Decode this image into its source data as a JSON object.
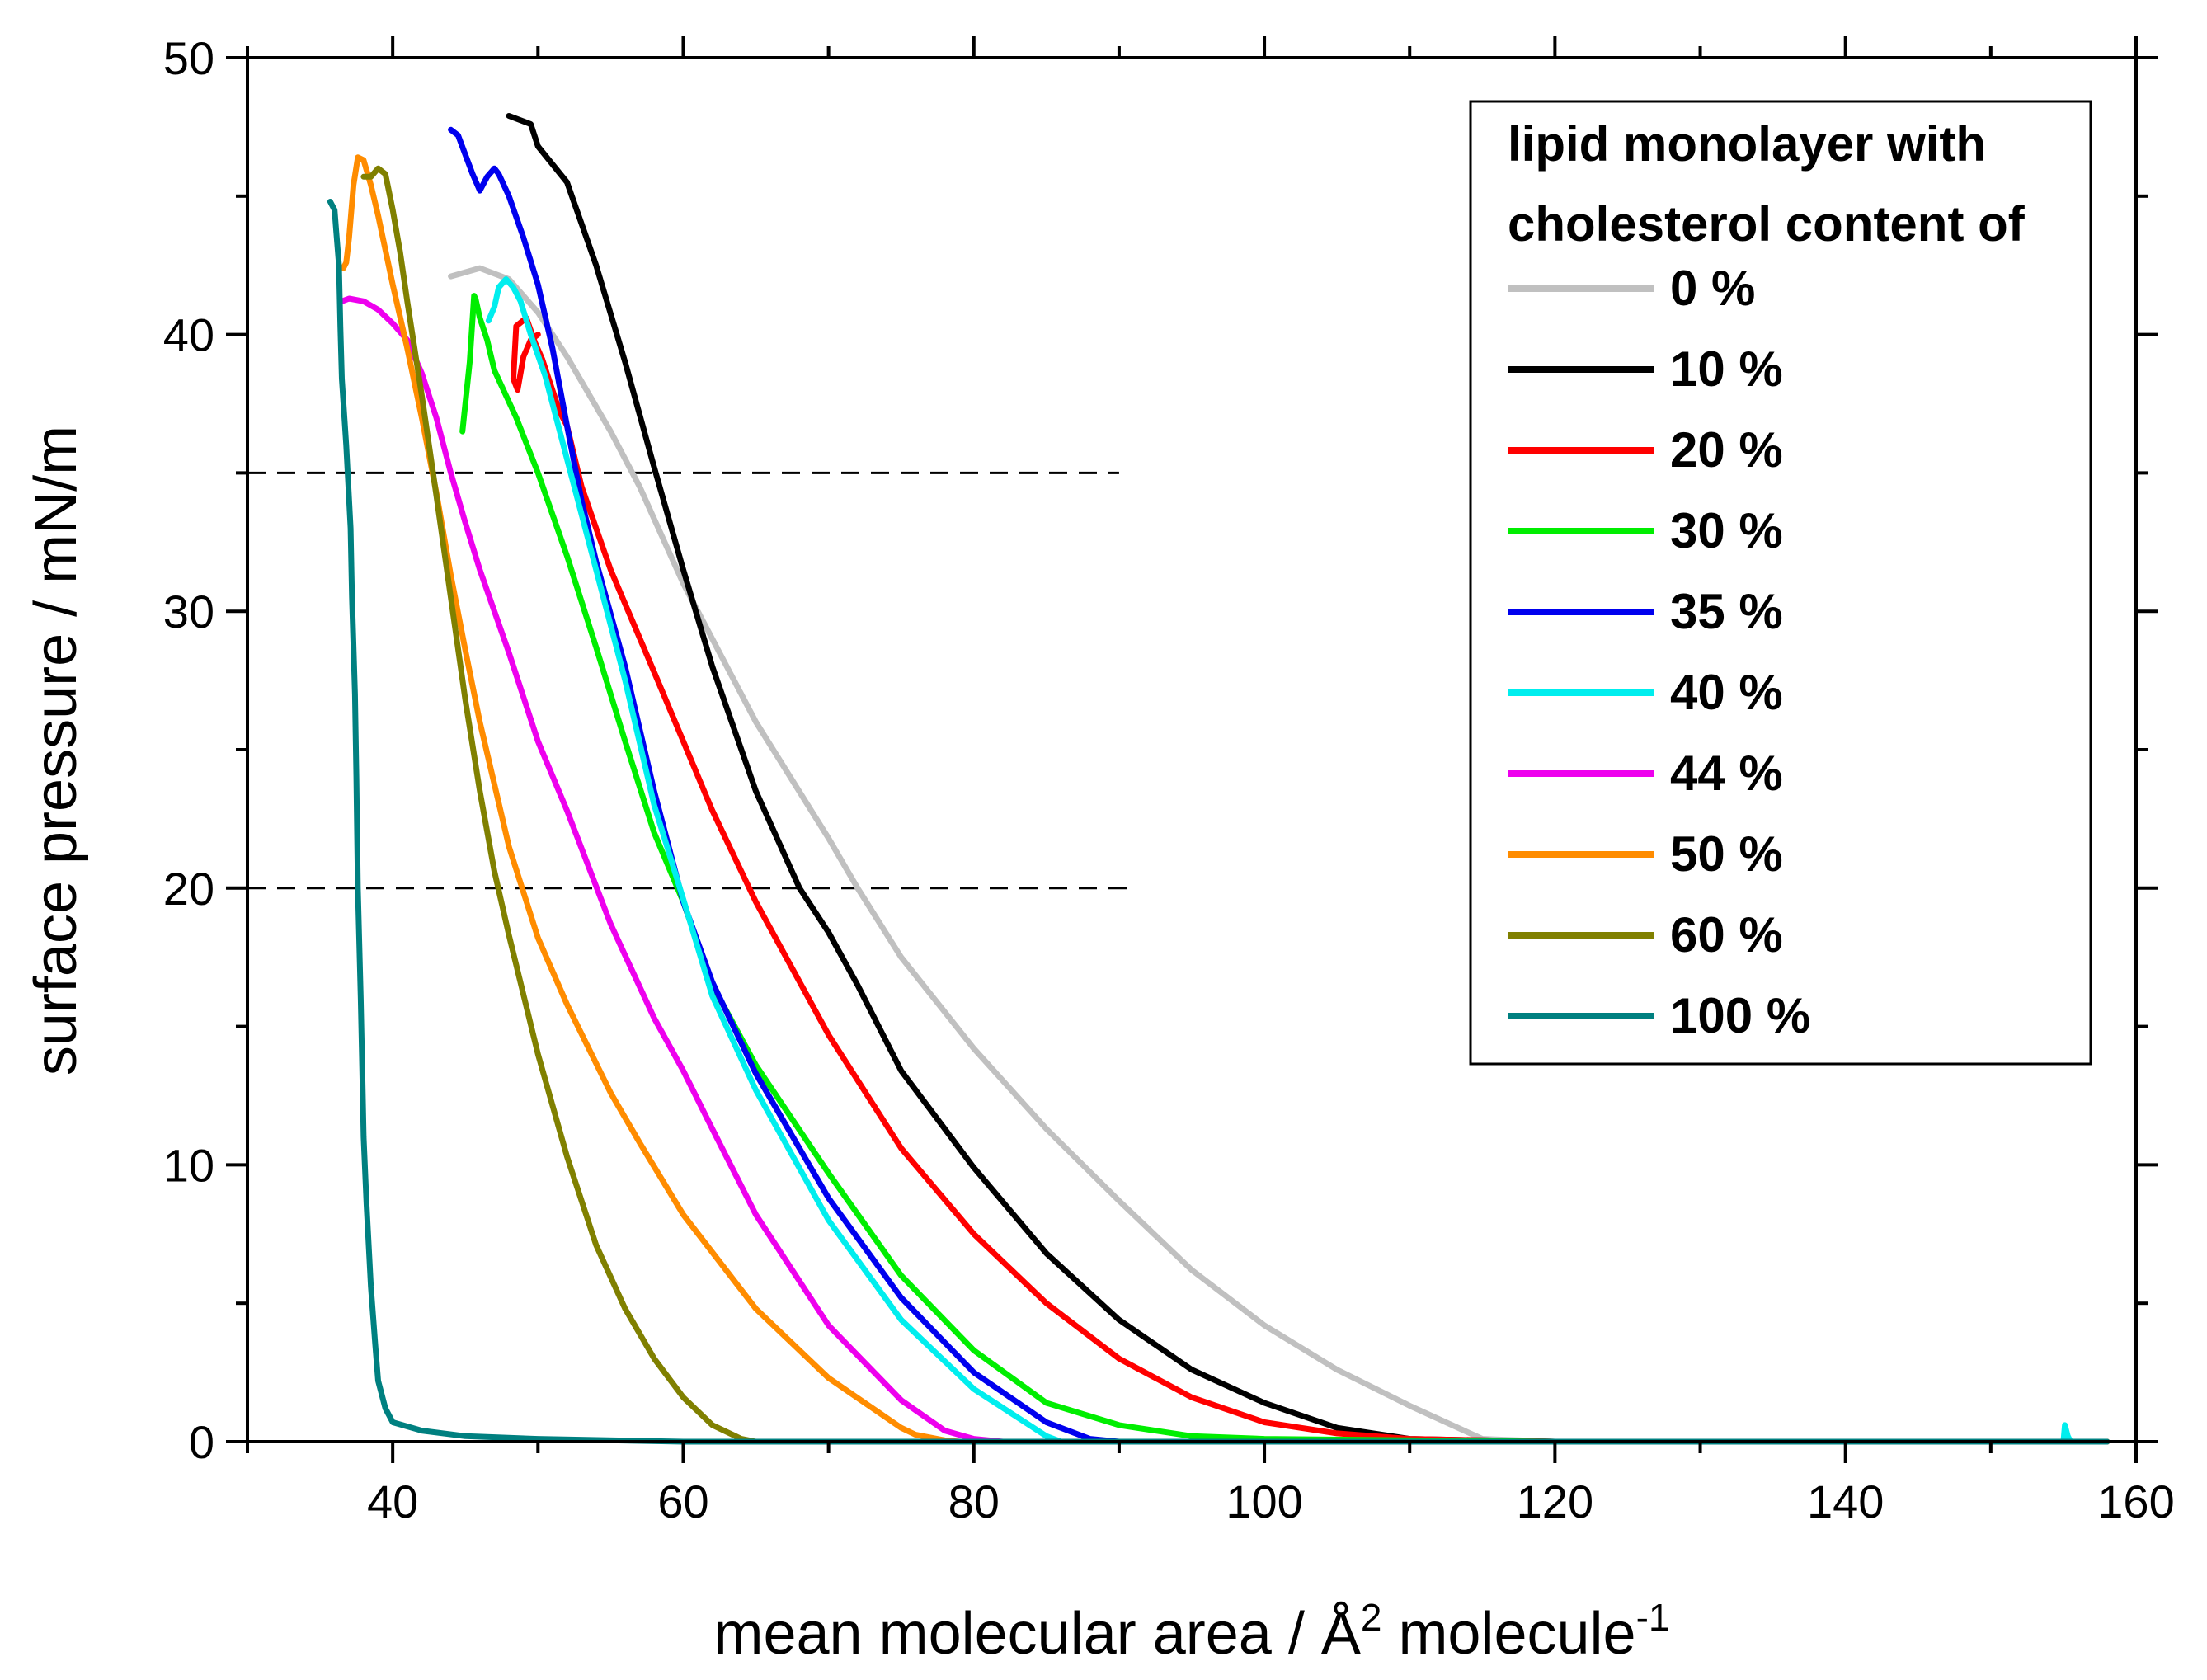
{
  "chart_data": {
    "type": "line",
    "title": "",
    "xlabel": "mean molecular area / Å",
    "xlabel_sup1": "2",
    "xlabel_mid": " molecule",
    "xlabel_sup2": "-1",
    "ylabel": "surface pressure / mN/m",
    "xlim": [
      30,
      160
    ],
    "ylim": [
      0,
      50
    ],
    "xticks": [
      40,
      60,
      80,
      100,
      120,
      140,
      160
    ],
    "yticks": [
      0,
      10,
      20,
      30,
      40,
      50
    ],
    "grid": false,
    "legend_position": "top-right",
    "legend_title_line1": "lipid monolayer with",
    "legend_title_line2": "cholesterol content of",
    "reference_lines": [
      {
        "y": 35,
        "x_range": [
          30,
          90
        ],
        "style": "dashed"
      },
      {
        "y": 20,
        "x_range": [
          30,
          91
        ],
        "style": "dashed"
      }
    ],
    "series": [
      {
        "name": "0 %",
        "color": "#c0c0c0",
        "x": [
          158,
          140,
          120,
          115,
          110,
          105,
          100,
          95,
          90,
          85,
          80,
          75,
          72,
          70,
          65,
          60,
          57,
          55,
          52,
          50,
          48,
          46,
          44
        ],
        "y": [
          0,
          0,
          0,
          0.1,
          1.3,
          2.6,
          4.2,
          6.2,
          8.7,
          11.3,
          14.2,
          17.5,
          20,
          21.8,
          26,
          31,
          34.5,
          36.5,
          39.2,
          40.8,
          42,
          42.4,
          42.1
        ]
      },
      {
        "name": "10 %",
        "color": "#000000",
        "x": [
          158,
          140,
          120,
          110,
          105,
          100,
          95,
          90,
          85,
          80,
          75,
          72,
          70,
          68,
          65,
          62,
          60,
          58,
          56,
          54,
          52,
          50,
          49.5,
          48
        ],
        "y": [
          0,
          0,
          0,
          0.1,
          0.5,
          1.4,
          2.6,
          4.4,
          6.8,
          9.9,
          13.4,
          16.5,
          18.4,
          20,
          23.5,
          28,
          31.5,
          35.2,
          39,
          42.5,
          45.5,
          46.8,
          47.6,
          47.9
        ]
      },
      {
        "name": "20 %",
        "color": "#ff0000",
        "x": [
          158,
          140,
          120,
          110,
          105,
          100,
          95,
          90,
          85,
          80,
          75,
          70,
          65,
          62,
          60,
          58,
          55,
          53,
          52,
          51.5,
          50.8,
          50.3,
          49.8,
          49.2,
          48.5,
          48.3,
          48.6,
          49,
          49.5,
          50
        ],
        "y": [
          0,
          0,
          0,
          0.1,
          0.3,
          0.7,
          1.6,
          3,
          5,
          7.5,
          10.6,
          14.7,
          19.5,
          22.8,
          25.3,
          27.8,
          31.5,
          34.5,
          36.7,
          37.2,
          38.3,
          39.1,
          39.7,
          40.6,
          40.3,
          38.4,
          38,
          39.2,
          39.8,
          40
        ]
      },
      {
        "name": "30 %",
        "color": "#00ee00",
        "x": [
          158,
          140,
          120,
          100,
          95,
          90,
          85,
          80,
          75,
          70,
          65,
          62,
          60,
          58,
          56,
          54,
          52,
          50,
          48.5,
          47,
          46.5,
          46,
          45.7,
          45.6,
          45.3,
          44.8
        ],
        "y": [
          0,
          0,
          0,
          0.1,
          0.2,
          0.6,
          1.4,
          3.3,
          6,
          9.7,
          13.6,
          16.5,
          19.5,
          22,
          25.3,
          28.7,
          32,
          35,
          37,
          38.7,
          39.8,
          40.6,
          41.3,
          41.4,
          39,
          36.5
        ]
      },
      {
        "name": "35 %",
        "color": "#0000ee",
        "x": [
          158,
          140,
          120,
          100,
          90,
          88,
          85,
          80,
          75,
          70,
          65,
          62,
          60,
          58,
          56,
          54,
          53,
          52,
          51,
          50,
          49,
          48,
          47.3,
          47,
          46.5,
          46,
          45.5,
          45,
          44.5,
          44
        ],
        "y": [
          0,
          0,
          0,
          0,
          0,
          0.1,
          0.7,
          2.5,
          5.2,
          8.8,
          13.3,
          16.6,
          19.5,
          23.5,
          28,
          31.8,
          34,
          36.7,
          39.5,
          41.8,
          43.5,
          45,
          45.8,
          46,
          45.7,
          45.2,
          45.8,
          46.5,
          47.2,
          47.4
        ]
      },
      {
        "name": "40 %",
        "color": "#00eeee",
        "x": [
          158,
          155.5,
          155.3,
          155.1,
          155,
          140,
          120,
          100,
          86,
          85,
          80,
          75,
          70,
          65,
          62,
          60,
          58,
          56,
          54,
          52,
          50.5,
          49.5,
          48.8,
          48.3,
          47.8,
          47.3,
          47,
          46.6
        ],
        "y": [
          0,
          0,
          0.2,
          0.6,
          0,
          0,
          0,
          0,
          0,
          0.2,
          1.9,
          4.4,
          8,
          12.7,
          16.1,
          19.6,
          23,
          27.5,
          31.5,
          35.5,
          38.5,
          40,
          41.2,
          41.7,
          42,
          41.7,
          41,
          40.5
        ]
      },
      {
        "name": "44 %",
        "color": "#ee00ee",
        "x": [
          158,
          140,
          120,
          100,
          82,
          80,
          78,
          75,
          70,
          65,
          62,
          60,
          58,
          55,
          52,
          50,
          48,
          46,
          45,
          44,
          43,
          42,
          41,
          40,
          39,
          38,
          37,
          36.5
        ],
        "y": [
          0,
          0,
          0,
          0,
          0,
          0.1,
          0.4,
          1.5,
          4.2,
          8.2,
          11.3,
          13.4,
          15.3,
          18.7,
          22.8,
          25.3,
          28.5,
          31.5,
          33.2,
          35,
          37,
          38.6,
          39.8,
          40.4,
          40.9,
          41.2,
          41.3,
          41.2
        ]
      },
      {
        "name": "50 %",
        "color": "#ff8c00",
        "x": [
          158,
          140,
          120,
          100,
          79,
          78,
          76,
          75,
          70,
          65,
          60,
          57,
          55,
          52,
          50,
          48,
          46,
          45,
          44,
          43,
          42,
          41,
          40,
          39,
          38.5,
          38,
          37.6,
          37.3,
          37,
          36.8,
          36.6
        ],
        "y": [
          0,
          0,
          0,
          0,
          0,
          0.05,
          0.25,
          0.5,
          2.3,
          4.8,
          8.2,
          10.8,
          12.6,
          15.8,
          18.2,
          21.5,
          26,
          28.6,
          31.3,
          34.3,
          37,
          39.5,
          41.8,
          44.3,
          45.4,
          46.3,
          46.4,
          45.4,
          43.5,
          42.6,
          42.4
        ]
      },
      {
        "name": "60 %",
        "color": "#808000",
        "x": [
          158,
          140,
          120,
          100,
          80,
          70,
          65,
          64,
          62,
          60,
          58,
          56,
          54,
          52,
          50,
          48,
          47,
          46,
          45,
          44,
          43,
          42,
          41,
          40.5,
          40,
          39.5,
          39,
          38.5,
          38
        ],
        "y": [
          0,
          0,
          0,
          0,
          0,
          0,
          0,
          0.1,
          0.6,
          1.6,
          3,
          4.8,
          7.1,
          10.3,
          14,
          18.3,
          20.6,
          23.5,
          26.8,
          30.5,
          34.2,
          37.8,
          41.2,
          43,
          44.5,
          45.8,
          46,
          45.7,
          45.7
        ]
      },
      {
        "name": "100 %",
        "color": "#008080",
        "x": [
          158,
          140,
          120,
          100,
          80,
          60,
          50,
          45,
          42,
          40,
          39.5,
          39,
          38.8,
          38.5,
          38.2,
          38,
          37.9,
          37.8,
          37.6,
          37.5,
          37.4,
          37.2,
          37.1,
          36.8,
          36.5,
          36.4,
          36.3,
          36.1,
          36,
          35.7
        ],
        "y": [
          0,
          0,
          0,
          0,
          0,
          0,
          0.1,
          0.2,
          0.4,
          0.7,
          1.2,
          2.2,
          3.5,
          5.6,
          8.6,
          11,
          13.5,
          16,
          20,
          24,
          27,
          30.5,
          33,
          36,
          38.4,
          40.3,
          42.5,
          43.8,
          44.5,
          44.8
        ]
      }
    ]
  }
}
